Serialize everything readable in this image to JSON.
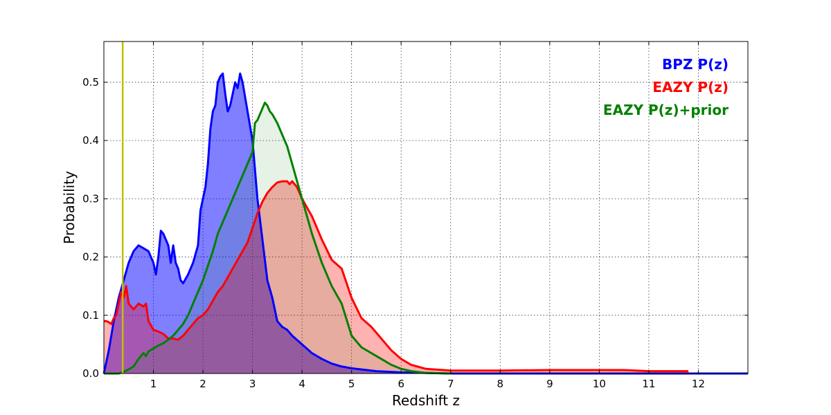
{
  "chart_data": {
    "type": "area",
    "xlabel": "Redshift z",
    "ylabel": "Probability",
    "xlim": [
      0,
      13
    ],
    "ylim": [
      0,
      0.57
    ],
    "grid": true,
    "legend_placement": "top-right",
    "x_ticks": [
      1,
      2,
      3,
      4,
      5,
      6,
      7,
      8,
      9,
      10,
      11,
      12
    ],
    "y_ticks": [
      0.0,
      0.1,
      0.2,
      0.3,
      0.4,
      0.5
    ],
    "y_tick_labels": [
      "0.0",
      "0.1",
      "0.2",
      "0.3",
      "0.4",
      "0.5"
    ],
    "vertical_marker": {
      "x": 0.38,
      "color": "#bfbf00"
    },
    "series": [
      {
        "name": "BPZ P(z)",
        "color": "#0000ff",
        "fill": "#0000ff",
        "fill_opacity": 0.5,
        "points": [
          [
            0,
            0
          ],
          [
            0.1,
            0.04
          ],
          [
            0.2,
            0.09
          ],
          [
            0.3,
            0.13
          ],
          [
            0.4,
            0.16
          ],
          [
            0.5,
            0.19
          ],
          [
            0.6,
            0.21
          ],
          [
            0.7,
            0.22
          ],
          [
            0.8,
            0.215
          ],
          [
            0.9,
            0.21
          ],
          [
            1.0,
            0.19
          ],
          [
            1.05,
            0.17
          ],
          [
            1.1,
            0.2
          ],
          [
            1.15,
            0.245
          ],
          [
            1.2,
            0.24
          ],
          [
            1.3,
            0.22
          ],
          [
            1.35,
            0.19
          ],
          [
            1.4,
            0.22
          ],
          [
            1.45,
            0.19
          ],
          [
            1.5,
            0.18
          ],
          [
            1.55,
            0.16
          ],
          [
            1.6,
            0.155
          ],
          [
            1.7,
            0.17
          ],
          [
            1.8,
            0.19
          ],
          [
            1.9,
            0.22
          ],
          [
            1.95,
            0.28
          ],
          [
            2.0,
            0.3
          ],
          [
            2.05,
            0.32
          ],
          [
            2.1,
            0.36
          ],
          [
            2.15,
            0.42
          ],
          [
            2.2,
            0.45
          ],
          [
            2.25,
            0.46
          ],
          [
            2.3,
            0.5
          ],
          [
            2.35,
            0.51
          ],
          [
            2.4,
            0.515
          ],
          [
            2.45,
            0.48
          ],
          [
            2.5,
            0.45
          ],
          [
            2.55,
            0.46
          ],
          [
            2.6,
            0.48
          ],
          [
            2.65,
            0.5
          ],
          [
            2.7,
            0.49
          ],
          [
            2.75,
            0.515
          ],
          [
            2.8,
            0.5
          ],
          [
            2.9,
            0.45
          ],
          [
            3.0,
            0.4
          ],
          [
            3.1,
            0.3
          ],
          [
            3.2,
            0.23
          ],
          [
            3.3,
            0.16
          ],
          [
            3.4,
            0.13
          ],
          [
            3.5,
            0.09
          ],
          [
            3.6,
            0.08
          ],
          [
            3.7,
            0.075
          ],
          [
            3.8,
            0.065
          ],
          [
            4.0,
            0.05
          ],
          [
            4.2,
            0.035
          ],
          [
            4.4,
            0.025
          ],
          [
            4.6,
            0.017
          ],
          [
            4.8,
            0.012
          ],
          [
            5.0,
            0.009
          ],
          [
            5.2,
            0.007
          ],
          [
            5.5,
            0.004
          ],
          [
            6.0,
            0.002
          ],
          [
            6.5,
            0.001
          ],
          [
            7.0,
            0
          ],
          [
            13.0,
            0
          ]
        ]
      },
      {
        "name": "EAZY P(z)",
        "color": "#ff0000",
        "fill": "#ff0000",
        "fill_opacity": 0.3,
        "points": [
          [
            0,
            0.09
          ],
          [
            0.05,
            0.09
          ],
          [
            0.1,
            0.088
          ],
          [
            0.15,
            0.085
          ],
          [
            0.2,
            0.095
          ],
          [
            0.25,
            0.1
          ],
          [
            0.3,
            0.12
          ],
          [
            0.35,
            0.14
          ],
          [
            0.4,
            0.13
          ],
          [
            0.45,
            0.15
          ],
          [
            0.5,
            0.12
          ],
          [
            0.6,
            0.11
          ],
          [
            0.7,
            0.12
          ],
          [
            0.8,
            0.115
          ],
          [
            0.85,
            0.12
          ],
          [
            0.9,
            0.09
          ],
          [
            1.0,
            0.075
          ],
          [
            1.1,
            0.072
          ],
          [
            1.2,
            0.068
          ],
          [
            1.3,
            0.06
          ],
          [
            1.4,
            0.06
          ],
          [
            1.5,
            0.058
          ],
          [
            1.6,
            0.065
          ],
          [
            1.7,
            0.075
          ],
          [
            1.8,
            0.085
          ],
          [
            1.9,
            0.095
          ],
          [
            2.0,
            0.1
          ],
          [
            2.1,
            0.11
          ],
          [
            2.2,
            0.125
          ],
          [
            2.3,
            0.14
          ],
          [
            2.4,
            0.15
          ],
          [
            2.5,
            0.165
          ],
          [
            2.6,
            0.18
          ],
          [
            2.7,
            0.195
          ],
          [
            2.8,
            0.21
          ],
          [
            2.9,
            0.225
          ],
          [
            3.0,
            0.25
          ],
          [
            3.1,
            0.275
          ],
          [
            3.2,
            0.295
          ],
          [
            3.3,
            0.31
          ],
          [
            3.4,
            0.32
          ],
          [
            3.5,
            0.328
          ],
          [
            3.6,
            0.33
          ],
          [
            3.7,
            0.33
          ],
          [
            3.75,
            0.325
          ],
          [
            3.8,
            0.33
          ],
          [
            3.9,
            0.32
          ],
          [
            4.0,
            0.3
          ],
          [
            4.2,
            0.27
          ],
          [
            4.4,
            0.23
          ],
          [
            4.6,
            0.195
          ],
          [
            4.8,
            0.18
          ],
          [
            5.0,
            0.13
          ],
          [
            5.2,
            0.095
          ],
          [
            5.4,
            0.08
          ],
          [
            5.6,
            0.06
          ],
          [
            5.8,
            0.04
          ],
          [
            6.0,
            0.025
          ],
          [
            6.2,
            0.015
          ],
          [
            6.5,
            0.008
          ],
          [
            7.0,
            0.005
          ],
          [
            8.0,
            0.005
          ],
          [
            9.0,
            0.006
          ],
          [
            10.0,
            0.006
          ],
          [
            10.5,
            0.006
          ],
          [
            11.0,
            0.004
          ],
          [
            11.5,
            0.004
          ],
          [
            11.78,
            0.004
          ],
          [
            11.78,
            0
          ]
        ]
      },
      {
        "name": "EAZY P(z)+prior",
        "color": "#008000",
        "fill": "#008000",
        "fill_opacity": 0.1,
        "points": [
          [
            0,
            0
          ],
          [
            0.3,
            0
          ],
          [
            0.4,
            0.003
          ],
          [
            0.5,
            0.007
          ],
          [
            0.6,
            0.012
          ],
          [
            0.7,
            0.025
          ],
          [
            0.8,
            0.035
          ],
          [
            0.85,
            0.03
          ],
          [
            0.9,
            0.038
          ],
          [
            1.0,
            0.043
          ],
          [
            1.1,
            0.048
          ],
          [
            1.2,
            0.052
          ],
          [
            1.3,
            0.058
          ],
          [
            1.4,
            0.065
          ],
          [
            1.5,
            0.075
          ],
          [
            1.6,
            0.085
          ],
          [
            1.7,
            0.1
          ],
          [
            1.8,
            0.12
          ],
          [
            1.9,
            0.14
          ],
          [
            2.0,
            0.16
          ],
          [
            2.1,
            0.185
          ],
          [
            2.2,
            0.21
          ],
          [
            2.3,
            0.24
          ],
          [
            2.4,
            0.26
          ],
          [
            2.5,
            0.28
          ],
          [
            2.6,
            0.3
          ],
          [
            2.7,
            0.32
          ],
          [
            2.8,
            0.34
          ],
          [
            2.9,
            0.36
          ],
          [
            3.0,
            0.38
          ],
          [
            3.05,
            0.43
          ],
          [
            3.1,
            0.435
          ],
          [
            3.2,
            0.455
          ],
          [
            3.25,
            0.465
          ],
          [
            3.3,
            0.46
          ],
          [
            3.35,
            0.45
          ],
          [
            3.4,
            0.445
          ],
          [
            3.5,
            0.43
          ],
          [
            3.6,
            0.41
          ],
          [
            3.7,
            0.39
          ],
          [
            3.8,
            0.36
          ],
          [
            3.9,
            0.33
          ],
          [
            4.0,
            0.3
          ],
          [
            4.2,
            0.24
          ],
          [
            4.4,
            0.19
          ],
          [
            4.6,
            0.15
          ],
          [
            4.8,
            0.12
          ],
          [
            5.0,
            0.065
          ],
          [
            5.2,
            0.045
          ],
          [
            5.4,
            0.035
          ],
          [
            5.6,
            0.025
          ],
          [
            5.8,
            0.015
          ],
          [
            6.0,
            0.008
          ],
          [
            6.2,
            0.004
          ],
          [
            6.5,
            0.001
          ],
          [
            7.0,
            0
          ]
        ]
      }
    ]
  }
}
